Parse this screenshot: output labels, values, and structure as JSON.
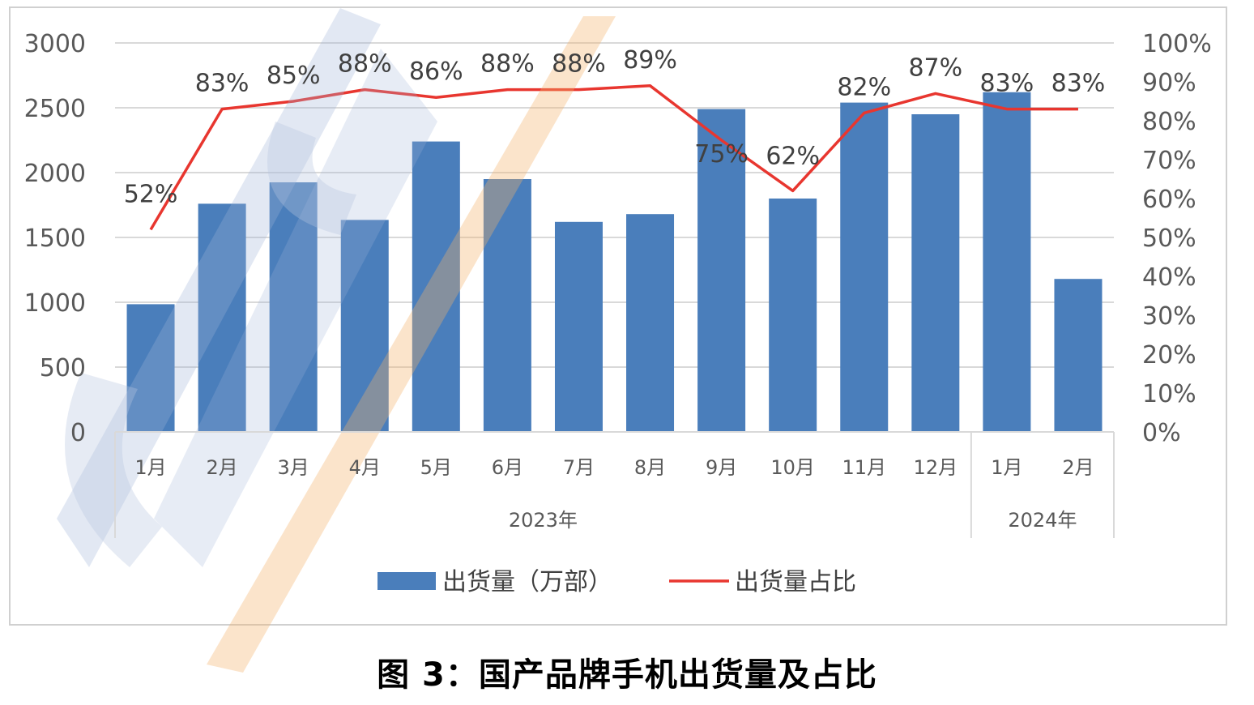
{
  "caption": "图 3：国产品牌手机出货量及占比",
  "chart_data": {
    "type": "bar",
    "title": "",
    "categories": [
      "1月",
      "2月",
      "3月",
      "4月",
      "5月",
      "6月",
      "7月",
      "8月",
      "9月",
      "10月",
      "11月",
      "12月",
      "1月",
      "2月"
    ],
    "groups": [
      {
        "label": "2023年",
        "count": 12
      },
      {
        "label": "2024年",
        "count": 2
      }
    ],
    "series": [
      {
        "name": "出货量（万部）",
        "type": "bar",
        "axis": "left",
        "color": "#4a7ebb",
        "values": [
          985,
          1760,
          1925,
          1635,
          2240,
          1950,
          1620,
          1680,
          2490,
          1800,
          2540,
          2450,
          2620,
          1180
        ]
      },
      {
        "name": "出货量占比",
        "type": "line",
        "axis": "right",
        "color": "#e8362f",
        "values": [
          52,
          83,
          85,
          88,
          86,
          88,
          88,
          89,
          75,
          62,
          82,
          87,
          83,
          83
        ],
        "labels": [
          "52%",
          "83%",
          "85%",
          "88%",
          "86%",
          "88%",
          "88%",
          "89%",
          "75%",
          "62%",
          "82%",
          "87%",
          "83%",
          "83%"
        ]
      }
    ],
    "y_left": {
      "min": 0,
      "max": 3000,
      "ticks": [
        "0",
        "500",
        "1000",
        "1500",
        "2000",
        "2500",
        "3000"
      ]
    },
    "y_right": {
      "min": 0,
      "max": 100,
      "ticks": [
        "0%",
        "10%",
        "20%",
        "30%",
        "40%",
        "50%",
        "60%",
        "70%",
        "80%",
        "90%",
        "100%"
      ]
    },
    "grid": true,
    "legend_position": "bottom",
    "watermark": "CAICT"
  }
}
